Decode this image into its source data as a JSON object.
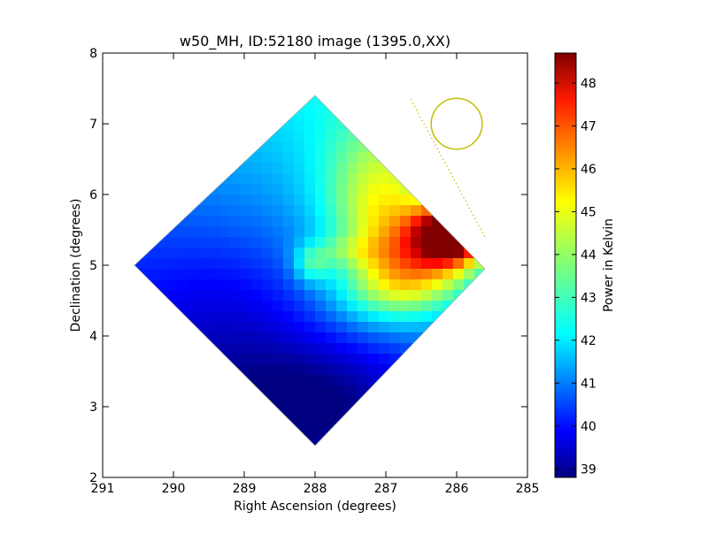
{
  "chart_data": {
    "type": "heatmap",
    "title": "w50_MH, ID:52180 image (1395.0,XX)",
    "xlabel": "Right Ascension (degrees)",
    "ylabel": "Declination (degrees)",
    "xlim": [
      291,
      285
    ],
    "ylim": [
      2,
      8
    ],
    "x_ticks": [
      "291",
      "290",
      "289",
      "288",
      "287",
      "286",
      "285"
    ],
    "y_ticks": [
      "2",
      "3",
      "4",
      "5",
      "6",
      "7",
      "8"
    ],
    "colorbar": {
      "label": "Power in Kelvin",
      "colormap": "jet",
      "range": [
        38.8,
        48.7
      ],
      "ticks": [
        "39",
        "40",
        "41",
        "42",
        "43",
        "44",
        "45",
        "46",
        "47",
        "48"
      ]
    },
    "map_footprint": {
      "shape": "diamond",
      "corners": [
        {
          "ra": 290.55,
          "dec": 5.0
        },
        {
          "ra": 288.0,
          "dec": 7.4
        },
        {
          "ra": 285.6,
          "dec": 4.95
        },
        {
          "ra": 288.0,
          "dec": 2.45
        }
      ]
    },
    "features": [
      {
        "name": "peak",
        "ra": 286.1,
        "dec": 5.5,
        "value": 48.6
      },
      {
        "name": "secondary",
        "ra": 286.6,
        "dec": 5.2,
        "value": 46.5
      },
      {
        "name": "ridge",
        "ra": 287.0,
        "dec": 6.1,
        "value": 44.5
      },
      {
        "name": "center",
        "ra": 288.05,
        "dec": 5.0,
        "value": 41.5
      },
      {
        "name": "minimum",
        "ra": 287.9,
        "dec": 3.1,
        "value": 39.0
      }
    ],
    "beam_circle": {
      "ra": 286.0,
      "dec": 7.0,
      "radius_deg": 0.36,
      "color": "#bfbf00"
    },
    "dotted_line": {
      "from": {
        "ra": 286.65,
        "dec": 7.35
      },
      "to": {
        "ra": 285.6,
        "dec": 5.4
      },
      "color": "#bfbf00"
    },
    "grid": false,
    "legend": "none"
  }
}
